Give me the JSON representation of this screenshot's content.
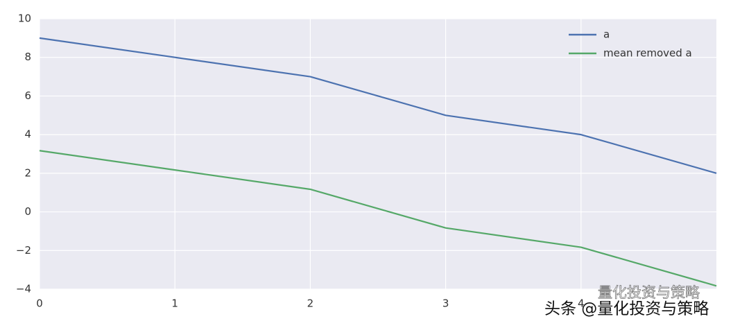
{
  "chart_data": {
    "type": "line",
    "x": [
      0,
      1,
      2,
      3,
      4,
      5
    ],
    "series": [
      {
        "name": "a",
        "color": "#4c72b0",
        "values": [
          9,
          8,
          7,
          5,
          4,
          2
        ]
      },
      {
        "name": "mean removed a",
        "color": "#55a868",
        "values": [
          3.17,
          2.17,
          1.17,
          -0.83,
          -1.83,
          -3.83
        ]
      }
    ],
    "xlim": [
      0,
      5
    ],
    "xticks": [
      0,
      1,
      2,
      3,
      4
    ],
    "ylim": [
      -4,
      10
    ],
    "yticks": [
      {
        "value": -4,
        "label": "−4"
      },
      {
        "value": -2,
        "label": "−2"
      },
      0,
      2,
      4,
      6,
      8,
      10
    ],
    "grid": true,
    "legend": "upper right",
    "watermark": "头条 @量化投资与策略",
    "watermark_faded": "量化投资与策略"
  }
}
